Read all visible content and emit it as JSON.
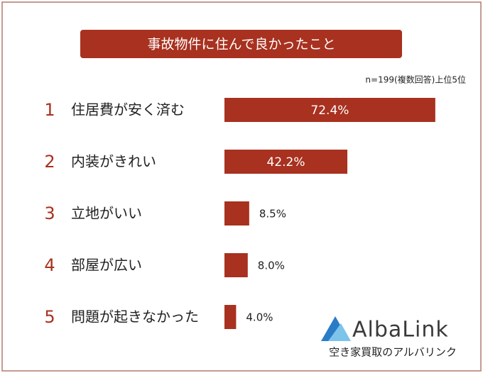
{
  "chart_data": {
    "type": "bar",
    "orientation": "horizontal",
    "title": "事故物件に住んで良かったこと",
    "subtitle": "n=199(複数回答)上位5位",
    "ranks": [
      1,
      2,
      3,
      4,
      5
    ],
    "categories": [
      "住居費が安く済む",
      "内装がきれい",
      "立地がいい",
      "部屋が広い",
      "問題が起きなかった"
    ],
    "values": [
      72.4,
      42.2,
      8.5,
      8.0,
      4.0
    ],
    "value_labels": [
      "72.4%",
      "42.2%",
      "8.5%",
      "8.0%",
      "4.0%"
    ],
    "color": "#a8311f"
  },
  "logo": {
    "name": "AlbaLink",
    "tagline": "空き家買取のアルバリンク"
  }
}
